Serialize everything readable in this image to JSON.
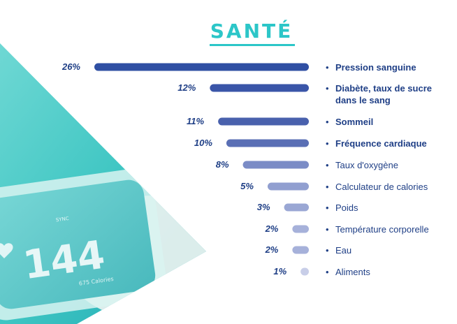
{
  "chart_data": {
    "type": "bar",
    "orientation": "horizontal",
    "title": "SANTÉ",
    "categories": [
      [
        "Pression sanguine"
      ],
      [
        "Diabète, taux de sucre",
        "dans le sang"
      ],
      [
        "Sommeil"
      ],
      [
        "Fréquence cardiaque"
      ],
      [
        "Taux d'oxygène"
      ],
      [
        "Calculateur de calories"
      ],
      [
        "Poids"
      ],
      [
        "Température corporelle"
      ],
      [
        "Eau"
      ],
      [
        "Aliments"
      ]
    ],
    "values": [
      26,
      12,
      11,
      10,
      8,
      5,
      3,
      2,
      2,
      1
    ],
    "value_labels": [
      "26%",
      "12%",
      "11%",
      "10%",
      "8%",
      "5%",
      "3%",
      "2%",
      "2%",
      "1%"
    ],
    "bold_categories": [
      true,
      true,
      true,
      true,
      false,
      false,
      false,
      false,
      false,
      false
    ],
    "bar_colors": [
      "#2f4fa3",
      "#3a55a8",
      "#4961ad",
      "#5a6fb5",
      "#7b8cc6",
      "#919fd0",
      "#9aa7d4",
      "#a6b1da",
      "#a6b1da",
      "#c8cee8"
    ],
    "label_color": "#1f3f86",
    "title_color": "#2cc6c8"
  },
  "watch": {
    "reading": "144",
    "subtext": "675 Calories",
    "status": "SYNC"
  }
}
